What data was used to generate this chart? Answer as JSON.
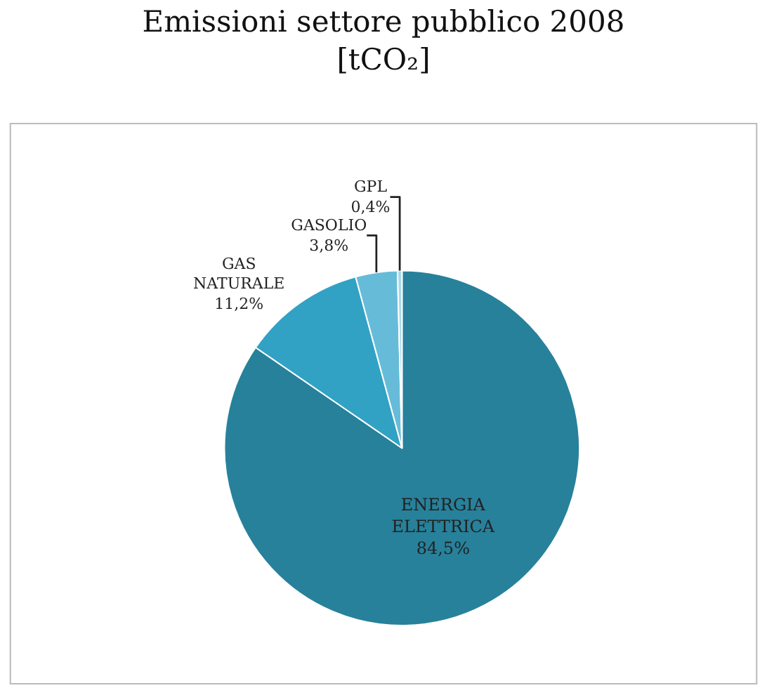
{
  "chart_data": {
    "type": "pie",
    "title": "Emissioni settore pubblico 2008\n[tCO₂]",
    "categories": [
      "ENERGIA ELETTRICA",
      "GAS NATURALE",
      "GASOLIO",
      "GPL"
    ],
    "values": [
      84.5,
      11.2,
      3.8,
      0.4
    ],
    "value_labels": [
      "84,5%",
      "11,2%",
      "3,8%",
      "0,4%"
    ],
    "colors": [
      "#27819b",
      "#31a2c4",
      "#66bcd8",
      "#aad8e8"
    ],
    "legend": false
  }
}
